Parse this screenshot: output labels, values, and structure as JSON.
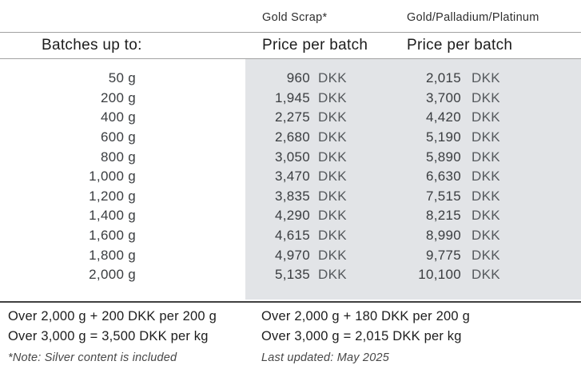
{
  "table": {
    "column_headers": {
      "gold_scrap": "Gold Scrap*",
      "gold_pd_pt": "Gold/Palladium/Platinum"
    },
    "subheaders": {
      "batches": "Batches up to:",
      "price_per_batch_1": "Price per batch",
      "price_per_batch_2": "Price per batch"
    },
    "currency": "DKK",
    "rows": [
      {
        "batch": "50 g",
        "gold_scrap": "960",
        "gold_pd_pt": "2,015"
      },
      {
        "batch": "200 g",
        "gold_scrap": "1,945",
        "gold_pd_pt": "3,700"
      },
      {
        "batch": "400 g",
        "gold_scrap": "2,275",
        "gold_pd_pt": "4,420"
      },
      {
        "batch": "600 g",
        "gold_scrap": "2,680",
        "gold_pd_pt": "5,190"
      },
      {
        "batch": "800 g",
        "gold_scrap": "3,050",
        "gold_pd_pt": "5,890"
      },
      {
        "batch": "1,000 g",
        "gold_scrap": "3,470",
        "gold_pd_pt": "6,630"
      },
      {
        "batch": "1,200 g",
        "gold_scrap": "3,835",
        "gold_pd_pt": "7,515"
      },
      {
        "batch": "1,400 g",
        "gold_scrap": "4,290",
        "gold_pd_pt": "8,215"
      },
      {
        "batch": "1,600 g",
        "gold_scrap": "4,615",
        "gold_pd_pt": "8,990"
      },
      {
        "batch": "1,800 g",
        "gold_scrap": "4,970",
        "gold_pd_pt": "9,775"
      },
      {
        "batch": "2,000 g",
        "gold_scrap": "5,135",
        "gold_pd_pt": "10,100"
      }
    ],
    "footer": {
      "gold_scrap_over_2000": "Over 2,000 g + 200 DKK per 200 g",
      "gold_scrap_over_3000": "Over 3,000 g = 3,500 DKK per kg",
      "gold_pd_pt_over_2000": "Over 2,000 g + 180 DKK per 200 g",
      "gold_pd_pt_over_3000": "Over 3,000 g = 2,015 DKK per kg",
      "note": "*Note: Silver content is included",
      "last_updated": "Last updated: May 2025"
    },
    "colors": {
      "price_panel_background": "#e2e4e7",
      "rule_light": "#a2a2a2",
      "rule_dark": "#404040",
      "text_primary": "#1d1d1d",
      "text_secondary": "#55595d"
    }
  }
}
